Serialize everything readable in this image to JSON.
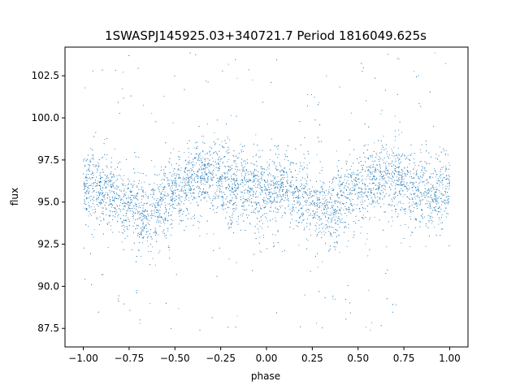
{
  "chart_data": {
    "type": "scatter",
    "title": "1SWASPJ145925.03+340721.7 Period 1816049.625s",
    "xlabel": "phase",
    "ylabel": "flux",
    "xlim": [
      -1.1,
      1.1
    ],
    "ylim": [
      86.4,
      104.2
    ],
    "xticks": [
      -1.0,
      -0.75,
      -0.5,
      -0.25,
      0.0,
      0.25,
      0.5,
      0.75,
      1.0
    ],
    "xtick_labels": [
      "−1.00",
      "−0.75",
      "−0.50",
      "−0.25",
      "0.00",
      "0.25",
      "0.50",
      "0.75",
      "1.00"
    ],
    "yticks": [
      87.5,
      90.0,
      92.5,
      95.0,
      97.5,
      100.0,
      102.5
    ],
    "ytick_labels": [
      "87.5",
      "90.0",
      "92.5",
      "95.0",
      "97.5",
      "100.0",
      "102.5"
    ],
    "marker_color": "#1f77b4",
    "grid": false,
    "legend": "none",
    "series": [
      {
        "profile": {
          "phase": [
            -1.0,
            -0.9,
            -0.8,
            -0.7,
            -0.65,
            -0.6,
            -0.5,
            -0.4,
            -0.3,
            -0.2,
            -0.1,
            0.0,
            0.1,
            0.2,
            0.3,
            0.35,
            0.4,
            0.5,
            0.6,
            0.7,
            0.8,
            0.9,
            1.0
          ],
          "center_flux": [
            96.0,
            95.8,
            95.0,
            94.6,
            94.2,
            94.6,
            95.5,
            96.3,
            96.6,
            96.0,
            95.8,
            95.6,
            95.8,
            95.2,
            94.8,
            94.2,
            94.8,
            95.8,
            96.3,
            96.5,
            95.8,
            95.2,
            96.0
          ],
          "scatter_width": 1.3,
          "extreme_range": [
            87.2,
            103.9
          ]
        }
      }
    ]
  }
}
